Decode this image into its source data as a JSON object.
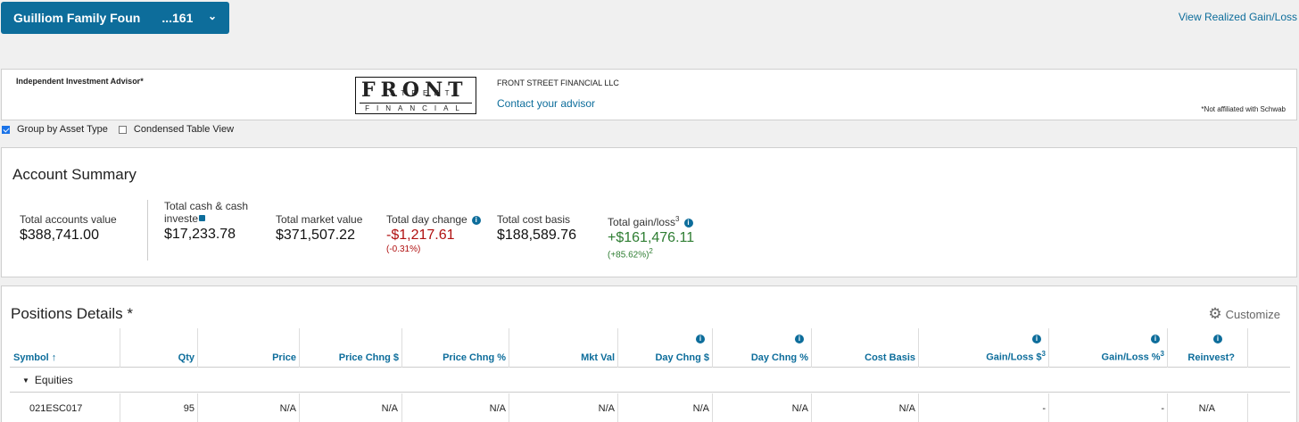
{
  "account": {
    "name": "Guilliom Family Foun",
    "number": "...161"
  },
  "header_link": "View Realized Gain/Loss",
  "advisor": {
    "label": "Independent Investment Advisor*",
    "logo_main": "FRONT",
    "logo_street": "STREET",
    "logo_sub": "FINANCIAL",
    "firm": "FRONT STREET FINANCIAL LLC",
    "contact": "Contact your advisor",
    "disclaimer": "*Not affiliated with Schwab"
  },
  "options": {
    "group_by": "Group by Asset Type",
    "condensed": "Condensed Table View",
    "group_checked": true,
    "condensed_checked": false
  },
  "summary": {
    "title": "Account Summary",
    "total_accounts_label": "Total accounts value",
    "total_accounts_value": "$388,741.00",
    "cash_label": "Total cash & cash investe",
    "cash_value": "$17,233.78",
    "market_label": "Total market value",
    "market_value": "$371,507.22",
    "day_change_label": "Total day change",
    "day_change_value": "-$1,217.61",
    "day_change_pct": "(-0.31%)",
    "cost_basis_label": "Total cost basis",
    "cost_basis_value": "$188,589.76",
    "gain_label": "Total gain/loss",
    "gain_sup": "3",
    "gain_value": "+$161,476.11",
    "gain_pct": "(+85.62%)",
    "gain_pct_sup": "2"
  },
  "positions": {
    "title": "Positions Details *",
    "customize": "Customize",
    "columns": {
      "symbol": "Symbol ↑",
      "qty": "Qty",
      "price": "Price",
      "price_chng_d": "Price Chng $",
      "price_chng_p": "Price Chng %",
      "mkt_val": "Mkt Val",
      "day_chng_d": "Day Chng $",
      "day_chng_p": "Day Chng %",
      "cost_basis": "Cost Basis",
      "gl_d": "Gain/Loss $",
      "gl_p": "Gain/Loss %",
      "gl_sup": "3",
      "reinvest": "Reinvest?"
    },
    "group": "Equities",
    "rows": [
      {
        "symbol": "021ESC017",
        "qty": "95",
        "price": "N/A",
        "price_chng_d": "N/A",
        "price_chng_p": "N/A",
        "mkt_val": "N/A",
        "day_chng_d": "N/A",
        "day_chng_p": "N/A",
        "cost_basis": "N/A",
        "gl_d": "-",
        "gl_p": "-",
        "reinvest": "N/A"
      }
    ]
  }
}
